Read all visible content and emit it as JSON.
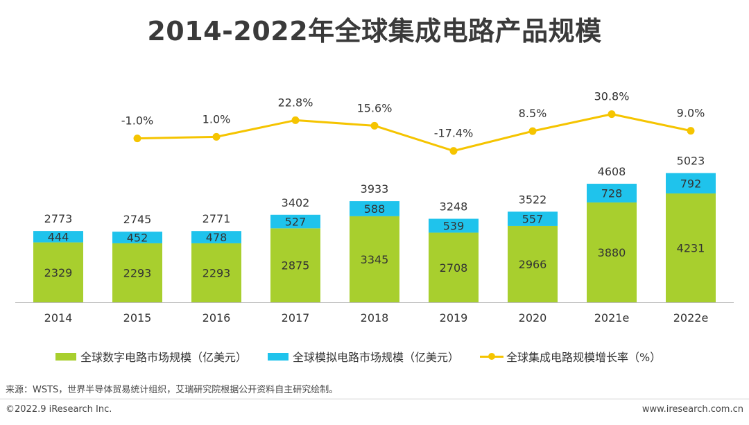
{
  "title": "2014-2022年全球集成电路产品规模",
  "legend": {
    "digital": "全球数字电路市场规模（亿美元）",
    "analog": "全球模拟电路市场规模（亿美元）",
    "growth": "全球集成电路规模增长率（%）"
  },
  "source": "来源：WSTS，世界半导体贸易统计组织，艾瑞研究院根据公开资料自主研究绘制。",
  "copyright": "©2022.9 iResearch Inc.",
  "website": "www.iresearch.com.cn",
  "colors": {
    "digital": "#a8cf2e",
    "analog": "#1fc3ec",
    "growth": "#f5c400"
  },
  "chart_data": {
    "type": "bar",
    "stacked": true,
    "categories": [
      "2014",
      "2015",
      "2016",
      "2017",
      "2018",
      "2019",
      "2020",
      "2021e",
      "2022e"
    ],
    "series": [
      {
        "name": "全球数字电路市场规模（亿美元）",
        "values": [
          2329,
          2293,
          2293,
          2875,
          3345,
          2708,
          2966,
          3880,
          4231
        ]
      },
      {
        "name": "全球模拟电路市场规模（亿美元）",
        "values": [
          444,
          452,
          478,
          527,
          588,
          539,
          557,
          728,
          792
        ]
      }
    ],
    "totals": [
      2773,
      2745,
      2771,
      3402,
      3933,
      3248,
      3522,
      4608,
      5023
    ],
    "line_series": {
      "name": "全球集成电路规模增长率（%）",
      "x": [
        "2015",
        "2016",
        "2017",
        "2018",
        "2019",
        "2020",
        "2021e",
        "2022e"
      ],
      "values": [
        -1.0,
        1.0,
        22.8,
        15.6,
        -17.4,
        8.5,
        30.8,
        9.0
      ],
      "labels": [
        "-1.0%",
        "1.0%",
        "22.8%",
        "15.6%",
        "-17.4%",
        "8.5%",
        "30.8%",
        "9.0%"
      ]
    },
    "legend_position": "bottom",
    "grid": false
  }
}
